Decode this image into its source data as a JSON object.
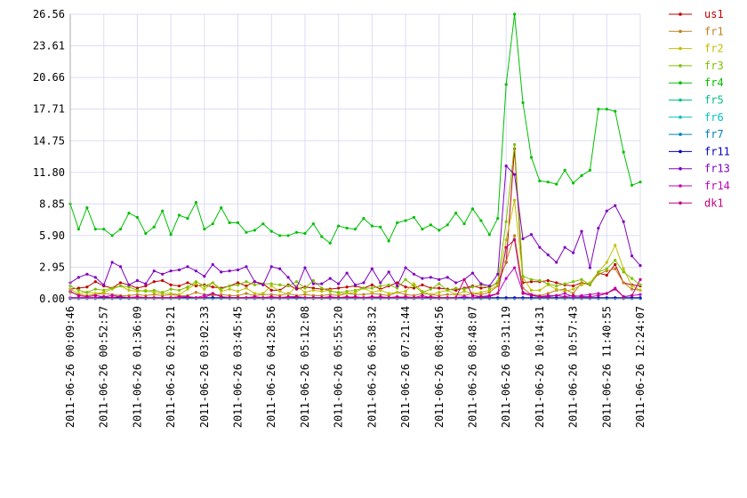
{
  "chart_data": {
    "type": "line",
    "categories": [
      "2011-06-26 00:09:46",
      null,
      null,
      null,
      "2011-06-26 00:52:57",
      null,
      null,
      null,
      "2011-06-26 01:36:09",
      null,
      null,
      null,
      "2011-06-26 02:19:21",
      null,
      null,
      null,
      "2011-06-26 03:02:33",
      null,
      null,
      null,
      "2011-06-26 03:45:45",
      null,
      null,
      null,
      "2011-06-26 04:28:56",
      null,
      null,
      null,
      "2011-06-26 05:12:08",
      null,
      null,
      null,
      "2011-06-26 05:55:20",
      null,
      null,
      null,
      "2011-06-26 06:38:32",
      null,
      null,
      null,
      "2011-06-26 07:21:44",
      null,
      null,
      null,
      "2011-06-26 08:04:56",
      null,
      null,
      null,
      "2011-06-26 08:48:07",
      null,
      null,
      null,
      "2011-06-26 09:31:19",
      null,
      null,
      null,
      "2011-06-26 10:14:31",
      null,
      null,
      null,
      "2011-06-26 10:57:43",
      null,
      null,
      null,
      "2011-06-26 11:40:55",
      null,
      null,
      null,
      "2011-06-26 12:24:07"
    ],
    "ylim": [
      0,
      26.56
    ],
    "yticks": [
      {
        "value": 0,
        "label": "0.00"
      },
      2.95,
      {
        "value": 5.9,
        "label": "5.90"
      },
      8.85,
      {
        "value": 11.8,
        "label": "11.80"
      },
      14.75,
      17.71,
      20.66,
      23.61,
      26.56
    ],
    "grid": true,
    "legend": "right",
    "series": [
      {
        "name": "us1",
        "color": "#c00000",
        "values": [
          0.9,
          1.0,
          1.1,
          1.6,
          1.2,
          1.0,
          1.5,
          1.3,
          1.0,
          1.2,
          1.6,
          1.7,
          1.3,
          1.2,
          1.5,
          1.2,
          1.3,
          1.1,
          1.0,
          1.2,
          1.5,
          1.2,
          1.6,
          1.4,
          0.8,
          0.8,
          1.3,
          0.9,
          1.1,
          1.0,
          0.9,
          0.9,
          1.0,
          1.1,
          1.2,
          1.0,
          1.3,
          0.9,
          1.2,
          1.5,
          1.1,
          1.0,
          1.3,
          1.0,
          1.0,
          0.9,
          0.8,
          1.0,
          1.2,
          1.0,
          1.1,
          1.5,
          3.4,
          14.0,
          1.5,
          1.6,
          1.6,
          1.7,
          1.5,
          1.3,
          1.2,
          1.5,
          1.3,
          2.4,
          2.2,
          3.2,
          1.5,
          1.3,
          1.2
        ]
      },
      {
        "name": "fr1",
        "color": "#c08020",
        "values": [
          0.6,
          0.4,
          0.3,
          0.4,
          0.5,
          0.4,
          0.3,
          0.3,
          0.4,
          0.3,
          0.4,
          0.3,
          0.4,
          0.3,
          0.3,
          0.6,
          0.4,
          0.3,
          0.4,
          0.3,
          0.3,
          0.5,
          0.3,
          0.4,
          0.4,
          0.3,
          0.5,
          0.3,
          0.4,
          0.3,
          0.3,
          0.4,
          0.3,
          0.5,
          0.4,
          0.4,
          0.5,
          0.4,
          0.3,
          0.6,
          0.4,
          0.3,
          0.5,
          0.4,
          0.3,
          0.4,
          0.4,
          0.3,
          0.5,
          0.4,
          0.6,
          1.2,
          3.5,
          5.9,
          1.0,
          0.4,
          0.3,
          0.5,
          0.8,
          0.9,
          0.5,
          1.5,
          1.4,
          2.3,
          2.6,
          2.8,
          1.5,
          0.9,
          0.8
        ]
      },
      {
        "name": "fr2",
        "color": "#c0c000",
        "values": [
          0.9,
          0.5,
          0.6,
          0.5,
          0.6,
          0.9,
          1.2,
          0.8,
          0.7,
          0.8,
          0.6,
          0.5,
          0.5,
          0.4,
          0.9,
          1.4,
          0.9,
          1.5,
          0.7,
          0.9,
          0.7,
          1.0,
          0.5,
          0.5,
          1.2,
          0.7,
          0.4,
          1.2,
          0.6,
          0.8,
          0.7,
          0.8,
          0.5,
          0.5,
          0.6,
          1.0,
          0.6,
          0.8,
          0.5,
          0.6,
          0.7,
          1.4,
          0.7,
          0.4,
          0.6,
          0.8,
          0.4,
          0.7,
          0.5,
          0.6,
          0.8,
          1.3,
          5.5,
          9.2,
          2.0,
          0.8,
          0.8,
          1.3,
          0.9,
          0.7,
          0.9,
          1.3,
          1.5,
          2.5,
          3.4,
          5.0,
          2.8,
          1.2,
          0.8
        ]
      },
      {
        "name": "fr3",
        "color": "#80c000",
        "values": [
          1.2,
          0.8,
          0.6,
          0.9,
          0.8,
          1.0,
          1.2,
          1.1,
          0.8,
          0.7,
          0.8,
          0.6,
          0.9,
          0.8,
          1.1,
          1.6,
          1.2,
          1.5,
          0.9,
          1.2,
          1.3,
          1.6,
          1.3,
          1.4,
          1.4,
          1.3,
          1.2,
          1.6,
          1.0,
          1.7,
          1.0,
          0.7,
          0.6,
          0.7,
          0.8,
          1.0,
          1.0,
          1.2,
          1.3,
          1.0,
          1.8,
          1.2,
          0.6,
          0.9,
          1.4,
          0.8,
          1.0,
          0.9,
          1.1,
          1.3,
          1.0,
          1.6,
          7.2,
          14.4,
          2.1,
          1.8,
          1.7,
          1.4,
          1.2,
          1.4,
          1.6,
          1.8,
          1.3,
          2.5,
          2.8,
          3.6,
          2.5,
          1.9,
          1.3
        ]
      },
      {
        "name": "fr4",
        "color": "#00c000",
        "values": [
          8.85,
          6.5,
          8.5,
          6.5,
          6.5,
          5.9,
          6.5,
          8.0,
          7.6,
          6.1,
          6.7,
          8.2,
          6.0,
          7.8,
          7.5,
          9.0,
          6.5,
          7.0,
          8.5,
          7.1,
          7.1,
          6.2,
          6.4,
          7.0,
          6.3,
          5.9,
          5.9,
          6.2,
          6.1,
          7.0,
          5.8,
          5.2,
          6.8,
          6.6,
          6.5,
          7.5,
          6.8,
          6.7,
          5.4,
          7.1,
          7.3,
          7.6,
          6.5,
          6.9,
          6.4,
          6.9,
          8.0,
          7.0,
          8.4,
          7.3,
          6.0,
          7.5,
          20.0,
          26.56,
          18.3,
          13.2,
          11.0,
          10.9,
          10.7,
          12.0,
          10.8,
          11.5,
          12.0,
          17.7,
          17.7,
          17.5,
          13.7,
          10.6,
          10.9
        ]
      },
      {
        "name": "fr5",
        "color": "#00c080",
        "values": [
          0.05,
          0.05,
          0.05,
          0.05,
          0.05,
          0.05,
          0.05,
          0.05,
          0.05,
          0.05,
          0.05,
          0.05,
          0.05,
          0.05,
          0.05,
          0.05,
          0.05,
          0.05,
          0.05,
          0.05,
          0.05,
          0.05,
          0.05,
          0.05,
          0.05,
          0.05,
          0.05,
          0.05,
          0.05,
          0.05,
          0.05,
          0.05,
          0.05,
          0.05,
          0.05,
          0.05,
          0.05,
          0.05,
          0.05,
          0.05,
          0.05,
          0.05,
          0.05,
          0.05,
          0.05,
          0.05,
          0.05,
          0.05,
          0.05,
          0.05,
          0.05,
          0.05,
          0.05,
          0.05,
          0.05,
          0.05,
          0.05,
          0.05,
          0.05,
          0.05,
          0.05,
          0.05,
          0.05,
          0.05,
          0.05,
          0.05,
          0.05,
          0.05,
          0.05
        ]
      },
      {
        "name": "fr6",
        "color": "#00c0c0",
        "values": [
          0.03,
          0.03,
          0.03,
          0.03,
          0.03,
          0.03,
          0.03,
          0.03,
          0.03,
          0.03,
          0.03,
          0.03,
          0.03,
          0.03,
          0.03,
          0.03,
          0.03,
          0.03,
          0.03,
          0.03,
          0.03,
          0.03,
          0.03,
          0.03,
          0.03,
          0.03,
          0.03,
          0.03,
          0.03,
          0.03,
          0.03,
          0.03,
          0.03,
          0.03,
          0.03,
          0.03,
          0.03,
          0.03,
          0.03,
          0.03,
          0.03,
          0.03,
          0.03,
          0.03,
          0.03,
          0.03,
          0.03,
          0.03,
          0.03,
          0.03,
          0.03,
          0.03,
          0.03,
          0.03,
          0.03,
          0.03,
          0.03,
          0.03,
          0.03,
          0.03,
          0.03,
          0.03,
          0.03,
          0.03,
          0.03,
          0.03,
          0.03,
          0.03,
          0.03
        ]
      },
      {
        "name": "fr7",
        "color": "#0080c0",
        "values": [
          0.02,
          0.02,
          0.02,
          0.02,
          0.02,
          0.02,
          0.02,
          0.02,
          0.02,
          0.02,
          0.02,
          0.02,
          0.02,
          0.02,
          0.02,
          0.02,
          0.02,
          0.02,
          0.02,
          0.02,
          0.02,
          0.02,
          0.02,
          0.02,
          0.02,
          0.02,
          0.02,
          0.02,
          0.02,
          0.02,
          0.02,
          0.02,
          0.02,
          0.02,
          0.02,
          0.02,
          0.02,
          0.02,
          0.02,
          0.02,
          0.02,
          0.02,
          0.02,
          0.02,
          0.02,
          0.02,
          0.02,
          0.02,
          0.02,
          0.02,
          0.02,
          0.02,
          0.02,
          0.02,
          0.02,
          0.02,
          0.02,
          0.02,
          0.02,
          0.02,
          0.02,
          0.02,
          0.02,
          0.02,
          0.02,
          0.02,
          0.02,
          0.02,
          0.02
        ]
      },
      {
        "name": "fr11",
        "color": "#0000c0",
        "values": [
          0.1,
          0.1,
          0.1,
          0.1,
          0.1,
          0.1,
          0.1,
          0.1,
          0.1,
          0.1,
          0.1,
          0.1,
          0.1,
          0.1,
          0.1,
          0.1,
          0.1,
          0.1,
          0.1,
          0.1,
          0.1,
          0.1,
          0.1,
          0.1,
          0.1,
          0.1,
          0.1,
          0.1,
          0.1,
          0.1,
          0.1,
          0.1,
          0.1,
          0.1,
          0.1,
          0.1,
          0.1,
          0.1,
          0.1,
          0.1,
          0.1,
          0.1,
          0.1,
          0.1,
          0.1,
          0.1,
          0.1,
          0.1,
          0.1,
          0.1,
          0.1,
          0.1,
          0.1,
          0.1,
          0.1,
          0.1,
          0.1,
          0.1,
          0.1,
          0.1,
          0.1,
          0.1,
          0.1,
          0.1,
          0.1,
          0.1,
          0.1,
          0.1,
          0.1
        ]
      },
      {
        "name": "fr13",
        "color": "#8000c0",
        "values": [
          1.5,
          2.0,
          2.3,
          2.0,
          1.3,
          3.4,
          3.0,
          1.3,
          1.7,
          1.4,
          2.6,
          2.3,
          2.6,
          2.7,
          3.0,
          2.6,
          2.1,
          3.2,
          2.5,
          2.6,
          2.7,
          3.0,
          1.6,
          1.3,
          3.0,
          2.8,
          2.0,
          1.0,
          2.9,
          1.4,
          1.4,
          1.9,
          1.4,
          2.4,
          1.3,
          1.5,
          2.8,
          1.5,
          2.5,
          1.2,
          2.9,
          2.3,
          1.9,
          2.0,
          1.8,
          2.0,
          1.5,
          1.8,
          2.4,
          1.4,
          1.2,
          2.3,
          12.4,
          11.6,
          5.6,
          6.0,
          4.8,
          4.1,
          3.4,
          4.8,
          4.3,
          6.3,
          2.9,
          6.6,
          8.2,
          8.7,
          7.2,
          4.0,
          3.1
        ]
      },
      {
        "name": "fr14",
        "color": "#c000c0",
        "values": [
          0.1,
          0.1,
          0.1,
          0.1,
          0.2,
          0.3,
          0.2,
          0.1,
          0.2,
          0.1,
          0.1,
          0.1,
          0.1,
          0.2,
          0.2,
          0.1,
          0.3,
          0.5,
          0.2,
          0.1,
          0.1,
          0.1,
          0.2,
          0.1,
          0.1,
          0.1,
          0.2,
          0.2,
          0.1,
          0.1,
          0.1,
          0.2,
          0.1,
          0.1,
          0.2,
          0.1,
          0.1,
          0.2,
          0.1,
          0.1,
          0.2,
          0.1,
          0.1,
          0.2,
          0.1,
          0.1,
          0.1,
          0.2,
          0.1,
          0.2,
          0.2,
          0.5,
          1.9,
          2.9,
          0.6,
          0.4,
          0.2,
          0.3,
          0.3,
          0.5,
          0.2,
          0.3,
          0.4,
          0.5,
          0.5,
          1.0,
          0.2,
          0.3,
          0.4
        ]
      },
      {
        "name": "dk1",
        "color": "#c00080",
        "values": [
          0.7,
          0.3,
          0.2,
          0.3,
          0.2,
          0.1,
          0.2,
          0.1,
          0.1,
          0.1,
          0.1,
          0.1,
          0.1,
          0.1,
          0.2,
          0.1,
          0.1,
          0.5,
          0.2,
          0.1,
          0.1,
          0.1,
          0.1,
          0.1,
          0.2,
          0.1,
          0.1,
          0.2,
          0.1,
          0.1,
          0.1,
          0.1,
          0.1,
          0.2,
          0.1,
          0.1,
          0.2,
          0.1,
          0.1,
          0.2,
          0.1,
          0.1,
          0.3,
          0.1,
          0.1,
          0.1,
          0.1,
          1.8,
          0.3,
          0.2,
          0.3,
          0.5,
          4.8,
          5.5,
          0.5,
          0.3,
          0.2,
          0.2,
          0.3,
          0.2,
          0.3,
          0.2,
          0.2,
          0.3,
          0.5,
          0.9,
          0.2,
          0.3,
          1.8
        ]
      }
    ]
  }
}
